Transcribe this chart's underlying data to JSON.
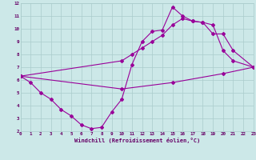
{
  "line1_x": [
    0,
    1,
    2,
    3,
    4,
    5,
    6,
    7,
    8,
    9,
    10,
    11,
    12,
    13,
    14,
    15,
    16,
    17,
    18,
    19,
    20,
    21,
    23
  ],
  "line1_y": [
    6.3,
    5.8,
    5.0,
    4.5,
    3.7,
    3.2,
    2.5,
    2.2,
    2.3,
    3.5,
    4.5,
    7.2,
    9.0,
    9.8,
    9.9,
    11.7,
    11.0,
    10.6,
    10.5,
    10.3,
    8.3,
    7.5,
    7.0
  ],
  "line2_x": [
    0,
    10,
    11,
    12,
    13,
    14,
    15,
    16,
    17,
    18,
    19,
    20,
    21,
    23
  ],
  "line2_y": [
    6.3,
    7.5,
    8.0,
    8.5,
    9.0,
    9.5,
    10.3,
    10.8,
    10.6,
    10.5,
    9.6,
    9.6,
    8.3,
    7.0
  ],
  "line3_x": [
    0,
    10,
    15,
    20,
    23
  ],
  "line3_y": [
    6.3,
    5.3,
    5.8,
    6.5,
    7.0
  ],
  "xlabel": "Windchill (Refroidissement éolien,°C)",
  "xlim": [
    0,
    23
  ],
  "ylim": [
    2,
    12
  ],
  "xticks": [
    0,
    1,
    2,
    3,
    4,
    5,
    6,
    7,
    8,
    9,
    10,
    11,
    12,
    13,
    14,
    15,
    16,
    17,
    18,
    19,
    20,
    21,
    22,
    23
  ],
  "yticks": [
    2,
    3,
    4,
    5,
    6,
    7,
    8,
    9,
    10,
    11,
    12
  ],
  "color": "#990099",
  "bg_color": "#cce8e8",
  "grid_color": "#aacccc",
  "font_color": "#660066"
}
